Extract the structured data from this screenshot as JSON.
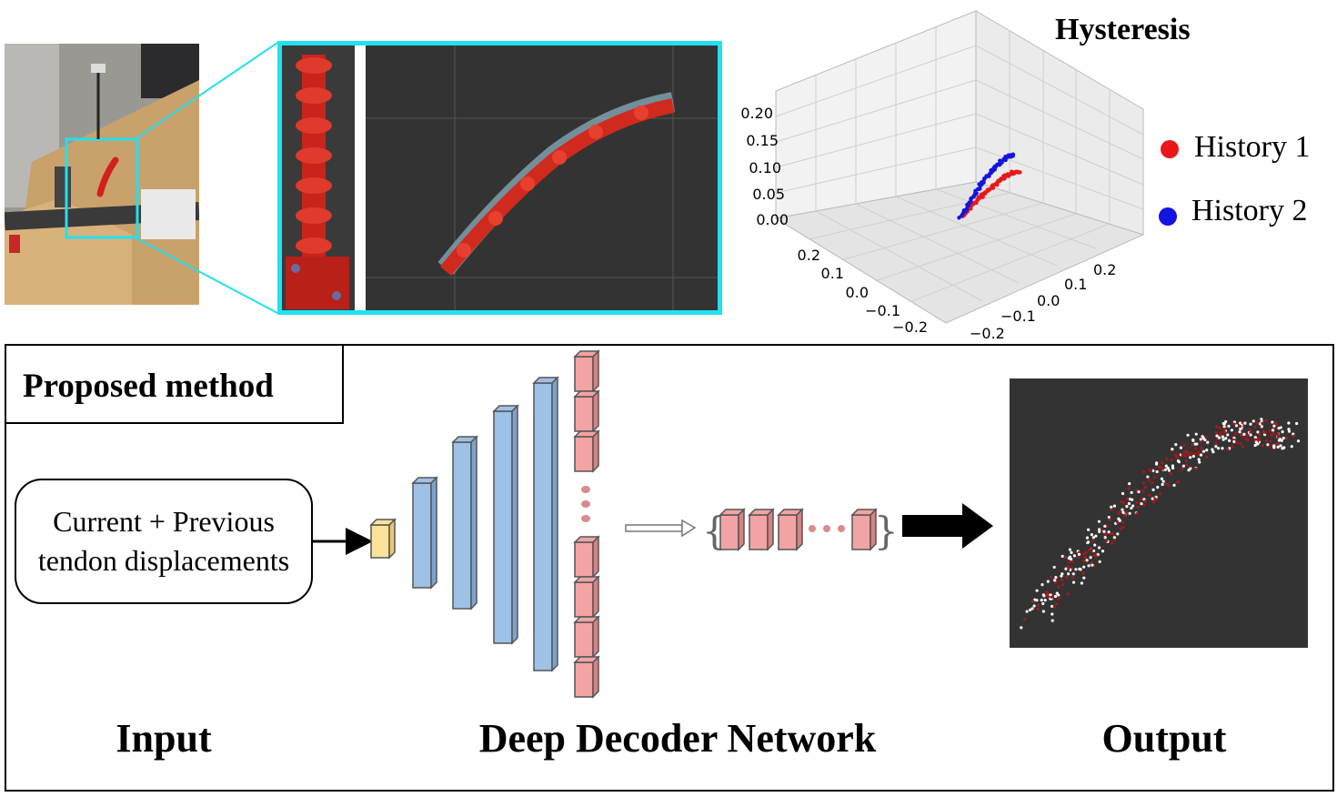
{
  "top": {
    "hysteresis_title": "Hysteresis",
    "legend": [
      {
        "label": "History 1",
        "color": "#e8181a"
      },
      {
        "label": "History 2",
        "color": "#1414e0"
      }
    ],
    "z_ticks": [
      "0.20",
      "0.15",
      "0.10",
      "0.05",
      "0.00"
    ],
    "x_ticks": [
      "0.2",
      "0.1",
      "0.0",
      "−0.1",
      "−0.2"
    ],
    "y_ticks": [
      "0.2",
      "0.1",
      "0.0",
      "−0.1",
      "−0.2"
    ],
    "highlight_color": "#22e0ef"
  },
  "method": {
    "label": "Proposed method",
    "input_line1": "Current + Previous",
    "input_line2": "tendon displacements",
    "captions": {
      "input": "Input",
      "network": "Deep Decoder Network",
      "output": "Output"
    },
    "colors": {
      "input_block": "#fde29a",
      "decoder_layer": "#9ec1e6",
      "output_block": "#f2a3a3"
    }
  }
}
